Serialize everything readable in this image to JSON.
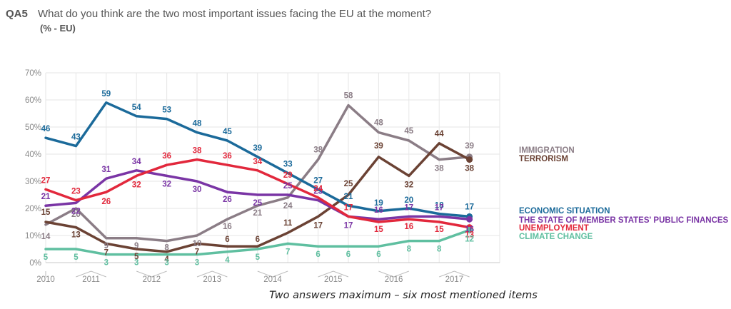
{
  "title": {
    "code": "QA5",
    "text": "What do you think are the two most important issues facing the EU at the moment?",
    "subtitle": "(% - EU)"
  },
  "footnote": "Two answers maximum – six most mentioned items",
  "chart_data": {
    "type": "line",
    "ylim": [
      0,
      70
    ],
    "yticks": [
      "0%",
      "10%",
      "20%",
      "30%",
      "40%",
      "50%",
      "60%",
      "70%"
    ],
    "grid": true,
    "x": [
      2010.0,
      2010.5,
      2011.0,
      2011.5,
      2012.0,
      2012.5,
      2013.0,
      2013.5,
      2014.0,
      2014.5,
      2015.0,
      2015.5,
      2016.0,
      2016.5,
      2017.0,
      2017.5
    ],
    "xticks": [
      "2010",
      "2011",
      "2012",
      "2013",
      "2014",
      "2015",
      "2016",
      "2017"
    ],
    "series": [
      {
        "name": "IMMIGRATION",
        "color": "#8b7d86",
        "values": [
          14,
          20,
          9,
          9,
          8,
          10,
          16,
          21,
          24,
          38,
          58,
          48,
          45,
          38,
          39,
          null
        ]
      },
      {
        "name": "TERRORISM",
        "color": "#6b4234",
        "values": [
          15,
          13,
          7,
          5,
          4,
          7,
          6,
          6,
          11,
          17,
          25,
          39,
          32,
          44,
          38,
          null
        ]
      },
      {
        "name": "ECONOMIC SITUATION",
        "color": "#1b6a9a",
        "values": [
          46,
          43,
          59,
          54,
          53,
          48,
          45,
          39,
          33,
          27,
          21,
          19,
          20,
          18,
          17,
          null
        ]
      },
      {
        "name": "THE STATE OF MEMBER STATES' PUBLIC FINANCES",
        "color": "#7a35a5",
        "values": [
          21,
          22,
          31,
          34,
          32,
          30,
          26,
          25,
          25,
          23,
          17,
          16,
          17,
          17,
          16,
          null
        ]
      },
      {
        "name": "UNEMPLOYMENT",
        "color": "#e2283c",
        "values": [
          27,
          23,
          26,
          32,
          36,
          38,
          36,
          34,
          29,
          24,
          17,
          15,
          16,
          15,
          13,
          null
        ]
      },
      {
        "name": "CLIMATE CHANGE",
        "color": "#5fbfa0",
        "values": [
          5,
          5,
          3,
          3,
          3,
          3,
          4,
          5,
          7,
          6,
          6,
          6,
          8,
          8,
          12,
          null
        ]
      }
    ]
  }
}
